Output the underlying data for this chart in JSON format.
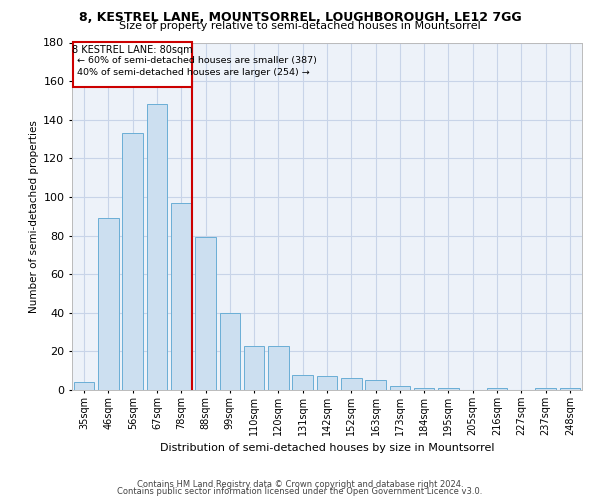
{
  "title_line1": "8, KESTREL LANE, MOUNTSORREL, LOUGHBOROUGH, LE12 7GG",
  "title_line2": "Size of property relative to semi-detached houses in Mountsorrel",
  "xlabel": "Distribution of semi-detached houses by size in Mountsorrel",
  "ylabel": "Number of semi-detached properties",
  "categories": [
    "35sqm",
    "46sqm",
    "56sqm",
    "67sqm",
    "78sqm",
    "88sqm",
    "99sqm",
    "110sqm",
    "120sqm",
    "131sqm",
    "142sqm",
    "152sqm",
    "163sqm",
    "173sqm",
    "184sqm",
    "195sqm",
    "205sqm",
    "216sqm",
    "227sqm",
    "237sqm",
    "248sqm"
  ],
  "values": [
    4,
    89,
    133,
    148,
    97,
    79,
    40,
    23,
    23,
    8,
    7,
    6,
    5,
    2,
    1,
    1,
    0,
    1,
    0,
    1,
    1
  ],
  "bar_color": "#ccdff0",
  "bar_edge_color": "#6aaed6",
  "property_bin_index": 4,
  "vline_color": "#cc0000",
  "annotation_text_line1": "8 KESTREL LANE: 80sqm",
  "annotation_text_line2": "← 60% of semi-detached houses are smaller (387)",
  "annotation_text_line3": "40% of semi-detached houses are larger (254) →",
  "annotation_box_color": "#cc0000",
  "ylim": [
    0,
    180
  ],
  "yticks": [
    0,
    20,
    40,
    60,
    80,
    100,
    120,
    140,
    160,
    180
  ],
  "footnote_line1": "Contains HM Land Registry data © Crown copyright and database right 2024.",
  "footnote_line2": "Contains public sector information licensed under the Open Government Licence v3.0.",
  "grid_color": "#c8d4e8",
  "background_color": "#edf2f9"
}
